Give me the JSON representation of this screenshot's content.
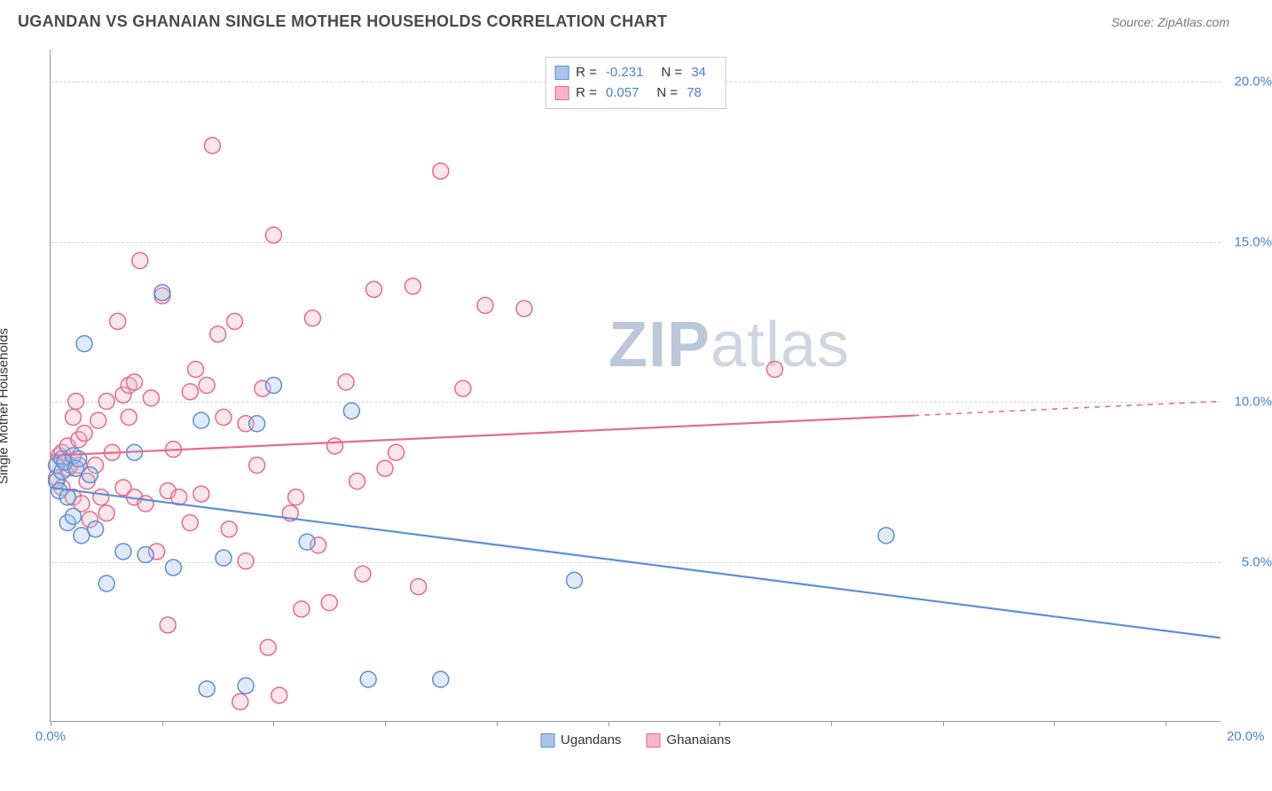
{
  "header": {
    "title": "UGANDAN VS GHANAIAN SINGLE MOTHER HOUSEHOLDS CORRELATION CHART",
    "source": "Source: ZipAtlas.com"
  },
  "chart": {
    "type": "scatter",
    "ylabel": "Single Mother Households",
    "xlim": [
      0,
      21
    ],
    "ylim": [
      0,
      21
    ],
    "y_ticks": [
      5,
      10,
      15,
      20
    ],
    "y_tick_labels": [
      "5.0%",
      "10.0%",
      "15.0%",
      "20.0%"
    ],
    "x_tick_positions": [
      0,
      2,
      4,
      6,
      8,
      10,
      12,
      14,
      16,
      18,
      20
    ],
    "x_origin_label": "0.0%",
    "x_end_label": "20.0%",
    "background_color": "#ffffff",
    "grid_color": "#d6d6d6",
    "axis_color": "#999999",
    "marker_radius": 9,
    "marker_stroke_width": 1.5,
    "marker_fill_opacity": 0.35,
    "line_width": 2.2,
    "series": {
      "ugandans": {
        "label": "Ugandans",
        "color": "#5b8fd6",
        "fill": "#a9c4ea",
        "R": "-0.231",
        "N": "34",
        "trend": {
          "x1": 0,
          "y1": 7.3,
          "x2": 21,
          "y2": 2.6,
          "dash_from_x": null
        },
        "points": [
          [
            0.1,
            7.5
          ],
          [
            0.1,
            8.0
          ],
          [
            0.15,
            7.2
          ],
          [
            0.2,
            8.2
          ],
          [
            0.2,
            7.8
          ],
          [
            0.25,
            8.1
          ],
          [
            0.3,
            7.0
          ],
          [
            0.3,
            6.2
          ],
          [
            0.4,
            8.3
          ],
          [
            0.4,
            6.4
          ],
          [
            0.45,
            7.9
          ],
          [
            0.5,
            8.2
          ],
          [
            0.55,
            5.8
          ],
          [
            0.6,
            11.8
          ],
          [
            0.7,
            7.7
          ],
          [
            0.8,
            6.0
          ],
          [
            1.0,
            4.3
          ],
          [
            1.3,
            5.3
          ],
          [
            1.5,
            8.4
          ],
          [
            1.7,
            5.2
          ],
          [
            2.0,
            13.4
          ],
          [
            2.2,
            4.8
          ],
          [
            2.7,
            9.4
          ],
          [
            2.8,
            1.0
          ],
          [
            3.1,
            5.1
          ],
          [
            3.5,
            1.1
          ],
          [
            3.7,
            9.3
          ],
          [
            4.0,
            10.5
          ],
          [
            4.6,
            5.6
          ],
          [
            5.4,
            9.7
          ],
          [
            5.7,
            1.3
          ],
          [
            7.0,
            1.3
          ],
          [
            9.4,
            4.4
          ],
          [
            15.0,
            5.8
          ]
        ]
      },
      "ghanaians": {
        "label": "Ghanaians",
        "color": "#e66a8c",
        "fill": "#f4b6c6",
        "R": "0.057",
        "N": "78",
        "trend": {
          "x1": 0,
          "y1": 8.3,
          "x2": 21,
          "y2": 10.0,
          "dash_from_x": 15.5
        },
        "points": [
          [
            0.1,
            8.0
          ],
          [
            0.1,
            7.6
          ],
          [
            0.15,
            8.3
          ],
          [
            0.2,
            8.4
          ],
          [
            0.2,
            7.3
          ],
          [
            0.25,
            8.1
          ],
          [
            0.3,
            7.9
          ],
          [
            0.3,
            8.6
          ],
          [
            0.35,
            8.0
          ],
          [
            0.4,
            9.5
          ],
          [
            0.4,
            7.0
          ],
          [
            0.45,
            10.0
          ],
          [
            0.5,
            8.8
          ],
          [
            0.5,
            8.0
          ],
          [
            0.55,
            6.8
          ],
          [
            0.6,
            9.0
          ],
          [
            0.65,
            7.5
          ],
          [
            0.7,
            6.3
          ],
          [
            0.8,
            8.0
          ],
          [
            0.85,
            9.4
          ],
          [
            0.9,
            7.0
          ],
          [
            1.0,
            10.0
          ],
          [
            1.0,
            6.5
          ],
          [
            1.1,
            8.4
          ],
          [
            1.2,
            12.5
          ],
          [
            1.3,
            7.3
          ],
          [
            1.3,
            10.2
          ],
          [
            1.4,
            10.5
          ],
          [
            1.4,
            9.5
          ],
          [
            1.5,
            10.6
          ],
          [
            1.5,
            7.0
          ],
          [
            1.6,
            14.4
          ],
          [
            1.7,
            6.8
          ],
          [
            1.8,
            10.1
          ],
          [
            1.9,
            5.3
          ],
          [
            2.0,
            13.3
          ],
          [
            2.1,
            7.2
          ],
          [
            2.1,
            3.0
          ],
          [
            2.2,
            8.5
          ],
          [
            2.3,
            7.0
          ],
          [
            2.5,
            10.3
          ],
          [
            2.5,
            6.2
          ],
          [
            2.6,
            11.0
          ],
          [
            2.7,
            7.1
          ],
          [
            2.8,
            10.5
          ],
          [
            2.9,
            18.0
          ],
          [
            3.0,
            12.1
          ],
          [
            3.1,
            9.5
          ],
          [
            3.2,
            6.0
          ],
          [
            3.3,
            12.5
          ],
          [
            3.5,
            9.3
          ],
          [
            3.5,
            5.0
          ],
          [
            3.7,
            8.0
          ],
          [
            3.8,
            10.4
          ],
          [
            3.9,
            2.3
          ],
          [
            4.0,
            15.2
          ],
          [
            4.1,
            0.8
          ],
          [
            4.3,
            6.5
          ],
          [
            4.4,
            7.0
          ],
          [
            4.5,
            3.5
          ],
          [
            4.7,
            12.6
          ],
          [
            4.8,
            5.5
          ],
          [
            5.0,
            3.7
          ],
          [
            5.1,
            8.6
          ],
          [
            5.3,
            10.6
          ],
          [
            5.5,
            7.5
          ],
          [
            5.6,
            4.6
          ],
          [
            5.8,
            13.5
          ],
          [
            6.0,
            7.9
          ],
          [
            6.2,
            8.4
          ],
          [
            6.5,
            13.6
          ],
          [
            6.6,
            4.2
          ],
          [
            7.0,
            17.2
          ],
          [
            7.4,
            10.4
          ],
          [
            7.8,
            13.0
          ],
          [
            8.5,
            12.9
          ],
          [
            13.0,
            11.0
          ],
          [
            3.4,
            0.6
          ]
        ]
      }
    }
  },
  "watermark": {
    "zip": "ZIP",
    "atlas": "atlas"
  }
}
